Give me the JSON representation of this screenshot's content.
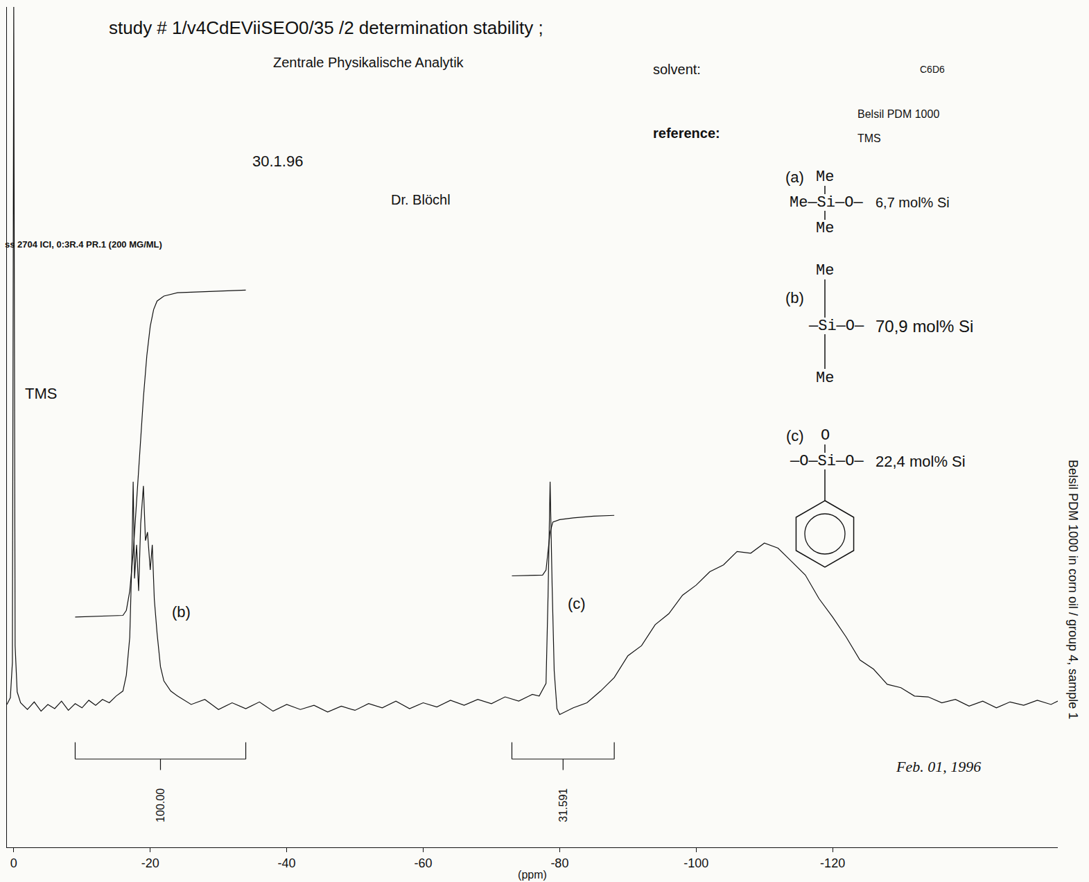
{
  "chart_data": {
    "type": "line",
    "title": "study # 1/v4CdEViiSEO0/35 /2 determination stability ;",
    "lab": "Zentrale Physikalische Analytik",
    "date_recorded": "30.1.96",
    "operator": "Dr. Blöchl",
    "solvent_label": "solvent:",
    "solvent": "C6D6",
    "reference_label": "reference:",
    "sample": "Belsil PDM 1000",
    "reference": "TMS",
    "acquisition": "ss 2704 ICI, 0:3R.4 PR.1 (200 MG/ML)",
    "side_note": "Belsil PDM 1000 in corn oil / group 4, sample 1",
    "date_signed": "Feb. 01, 1996",
    "x_label": "(ppm)",
    "xlim": [
      1,
      -153
    ],
    "xticks": [
      0,
      -20,
      -40,
      -60,
      -80,
      -100,
      -120
    ],
    "ylim": [
      0,
      100
    ],
    "grid": false,
    "tick_labels": "x",
    "series": [
      {
        "color": "#111111",
        "line_style": "solid",
        "x": [
          1,
          0.5,
          0.2,
          0.1,
          0,
          -0.1,
          -0.2,
          -0.5,
          -1,
          -2,
          -3,
          -4,
          -5,
          -6,
          -7,
          -8,
          -9,
          -10,
          -11,
          -12,
          -13,
          -14,
          -15,
          -16,
          -16.5,
          -17,
          -17.3,
          -17.5,
          -17.7,
          -18,
          -18.3,
          -18.6,
          -19,
          -19.3,
          -19.6,
          -20,
          -20.3,
          -20.6,
          -21,
          -21.5,
          -22,
          -23,
          -24,
          -26,
          -28,
          -30,
          -32,
          -34,
          -36,
          -38,
          -40,
          -42,
          -44,
          -46,
          -48,
          -50,
          -52,
          -54,
          -56,
          -58,
          -60,
          -62,
          -64,
          -66,
          -68,
          -70,
          -72,
          -74,
          -76,
          -77,
          -78,
          -78.3,
          -78.6,
          -78.9,
          -79.2,
          -79.6,
          -80,
          -82,
          -84,
          -86,
          -88,
          -90,
          -92,
          -94,
          -96,
          -98,
          -100,
          -102,
          -104,
          -106,
          -108,
          -110,
          -112,
          -114,
          -116,
          -118,
          -120,
          -122,
          -124,
          -126,
          -128,
          -130,
          -132,
          -134,
          -136,
          -138,
          -140,
          -142,
          -144,
          -146,
          -148,
          -150,
          -152,
          -153
        ],
        "values": [
          17.0,
          17.8,
          22.0,
          60.0,
          100.0,
          60.0,
          24.0,
          18.5,
          17.2,
          16.4,
          17.3,
          16.2,
          17.0,
          16.5,
          17.4,
          16.3,
          17.1,
          16.6,
          17.5,
          16.9,
          17.6,
          17.2,
          18.0,
          18.6,
          20.5,
          25.0,
          34.0,
          43.5,
          32.0,
          36.0,
          30.5,
          38.5,
          43.0,
          36.5,
          37.5,
          33.0,
          36.0,
          29.5,
          25.5,
          21.5,
          19.8,
          18.6,
          18.0,
          17.0,
          17.6,
          16.4,
          17.2,
          16.5,
          17.3,
          16.2,
          17.0,
          16.4,
          16.9,
          16.1,
          16.8,
          16.3,
          17.1,
          16.6,
          17.4,
          16.5,
          17.2,
          16.7,
          17.5,
          16.9,
          17.6,
          17.1,
          17.9,
          17.4,
          18.2,
          18.0,
          19.5,
          30.0,
          43.5,
          31.0,
          21.0,
          16.5,
          15.8,
          16.6,
          17.2,
          18.6,
          20.2,
          22.8,
          24.0,
          26.5,
          27.8,
          30.0,
          31.2,
          32.8,
          33.6,
          35.2,
          35.0,
          36.2,
          35.6,
          34.0,
          32.4,
          29.6,
          27.4,
          25.0,
          22.3,
          21.2,
          19.4,
          19.0,
          18.0,
          17.9,
          17.2,
          17.6,
          16.8,
          17.4,
          16.6,
          17.3,
          16.9,
          17.5,
          17.0,
          17.4
        ]
      },
      {
        "color": "#111111",
        "line_style": "solid",
        "x": [
          -9,
          -16,
          -16.5,
          -17,
          -17.5,
          -18,
          -18.5,
          -19,
          -19.5,
          -20,
          -20.5,
          -21,
          -22,
          -24,
          -34
        ],
        "values": [
          27.4,
          27.6,
          28.2,
          30.5,
          35.0,
          41.0,
          47.0,
          53.5,
          58.5,
          62.0,
          64.0,
          65.0,
          65.6,
          66.0,
          66.3
        ]
      },
      {
        "color": "#111111",
        "line_style": "solid",
        "x": [
          -73,
          -77.5,
          -78,
          -78.3,
          -78.6,
          -79,
          -80,
          -82,
          -85,
          -88
        ],
        "values": [
          32.3,
          32.4,
          33.0,
          35.0,
          37.5,
          38.7,
          39.0,
          39.2,
          39.4,
          39.5
        ]
      }
    ],
    "peak_labels": [
      {
        "text": "TMS",
        "x": -4,
        "y": 54
      },
      {
        "text": "(b)",
        "x": -24.5,
        "y": 28
      },
      {
        "text": "(c)",
        "x": -82.5,
        "y": 29
      }
    ],
    "integrals": [
      {
        "from": -9,
        "to": -34,
        "value": 100,
        "value_label": "100.00"
      },
      {
        "from": -73,
        "to": -88,
        "value": 31.591
      }
    ],
    "structures": [
      {
        "label": "(a)",
        "above": "Me",
        "chain": "Me—Si—O—",
        "below": "Me",
        "amount": "6,7 mol% Si"
      },
      {
        "label": "(b)",
        "above": "Me",
        "chain": "—Si—O—",
        "below": "Me",
        "amount": "70,9 mol% Si"
      },
      {
        "label": "(c)",
        "above": "O",
        "chain": "—O—Si—O—",
        "amount": "22,4 mol% Si"
      }
    ]
  }
}
